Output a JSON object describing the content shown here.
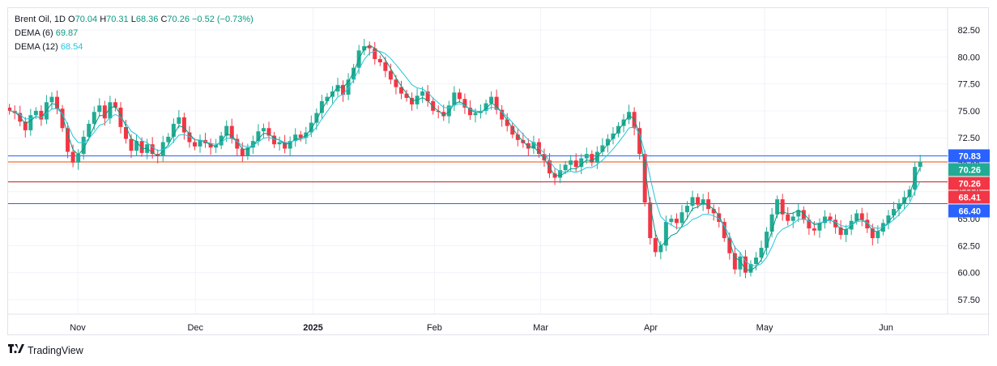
{
  "legend": {
    "symbol": "Brent Oil, 1D",
    "o_label": "O",
    "o_value": "70.04",
    "h_label": "H",
    "h_value": "70.31",
    "l_label": "L",
    "l_value": "68.36",
    "c_label": "C",
    "c_value": "70.26",
    "change": "−0.52 (−0.73%)",
    "dema6_label": "DEMA (6)",
    "dema6_value": "69.87",
    "dema12_label": "DEMA (12)",
    "dema12_value": "68.54"
  },
  "branding": {
    "logo_text": "TradingView"
  },
  "colors": {
    "up": "#22ab94",
    "down": "#f23645",
    "dema6": "#089981",
    "dema12": "#26c6da",
    "hline_blue": "#2962ff",
    "hline_orange": "#e65100",
    "hline_red": "#b71c1c"
  },
  "chart_data": {
    "type": "candlestick",
    "title": "Brent Oil, 1D",
    "y_ticks": [
      "82.50",
      "80.00",
      "77.50",
      "75.00",
      "72.50",
      "70.00",
      "67.50",
      "65.00",
      "62.50",
      "60.00",
      "57.50"
    ],
    "y_tick_values": [
      82.5,
      80.0,
      77.5,
      75.0,
      72.5,
      70.0,
      67.5,
      65.0,
      62.5,
      60.0,
      57.5
    ],
    "ylim": [
      56.0,
      84.0
    ],
    "x_labels": [
      "Nov",
      "Dec",
      "2025",
      "Feb",
      "Mar",
      "Apr",
      "May",
      "Jun"
    ],
    "x_label_dates": [
      "2024-11-01",
      "2024-12-02",
      "2025-01-02",
      "2025-02-03",
      "2025-03-03",
      "2025-04-01",
      "2025-05-01",
      "2025-06-02"
    ],
    "x_range": [
      "2024-10-14",
      "2025-06-30"
    ],
    "horizontal_lines": [
      {
        "value": 70.83,
        "label": "70.83",
        "color": "#2962ff"
      },
      {
        "value": 70.26,
        "label": "70.26",
        "color": "#e65100"
      },
      {
        "value": 68.41,
        "label": "68.41",
        "color": "#b71c1c"
      },
      {
        "value": 66.4,
        "label": "66.40",
        "color": "#2962ff"
      }
    ],
    "price_badges": [
      {
        "label": "70.83",
        "value": 70.83,
        "color": "#2962ff"
      },
      {
        "label": "70.26",
        "value": 70.26,
        "color": "#22ab94"
      },
      {
        "label": "70.26",
        "value": 68.9,
        "color": "#f23645"
      },
      {
        "label": "68.41",
        "value": 68.41,
        "color": "#f23645"
      },
      {
        "label": "66.40",
        "value": 66.4,
        "color": "#2962ff"
      }
    ],
    "series": [
      {
        "name": "Brent Oil",
        "type": "ohlc",
        "start": "2024-10-14",
        "step_days": 1.4,
        "closes": [
          75.0,
          74.8,
          74.0,
          73.2,
          74.6,
          75.0,
          74.2,
          75.8,
          76.3,
          75.2,
          73.4,
          71.2,
          70.2,
          71.0,
          72.6,
          73.8,
          74.9,
          75.5,
          74.3,
          75.8,
          75.3,
          73.5,
          72.4,
          71.3,
          72.2,
          71.1,
          71.9,
          71.0,
          70.8,
          72.1,
          72.6,
          73.8,
          74.4,
          73.0,
          72.1,
          71.7,
          72.3,
          72.0,
          71.6,
          71.8,
          72.7,
          73.6,
          72.4,
          71.5,
          70.8,
          71.6,
          72.2,
          73.1,
          73.4,
          72.7,
          71.9,
          72.1,
          71.5,
          72.2,
          72.8,
          72.5,
          73.0,
          73.9,
          74.8,
          75.9,
          76.3,
          76.8,
          77.4,
          76.5,
          77.9,
          79.0,
          80.6,
          81.0,
          80.8,
          79.8,
          79.5,
          78.7,
          77.9,
          77.2,
          76.6,
          76.2,
          75.6,
          76.4,
          76.8,
          75.9,
          75.0,
          74.9,
          74.5,
          75.5,
          76.7,
          76.1,
          75.3,
          74.6,
          74.8,
          75.0,
          75.7,
          76.3,
          75.1,
          74.2,
          73.6,
          72.8,
          72.3,
          72.0,
          71.5,
          72.1,
          71.0,
          70.4,
          69.2,
          68.8,
          69.5,
          70.0,
          70.4,
          69.8,
          70.6,
          71.0,
          70.2,
          71.2,
          71.8,
          72.4,
          72.9,
          73.6,
          74.2,
          74.9,
          73.4,
          71.0,
          66.5,
          63.2,
          61.9,
          62.5,
          64.7,
          65.0,
          64.6,
          65.6,
          66.2,
          67.0,
          66.3,
          66.8,
          65.9,
          65.5,
          64.7,
          63.2,
          61.8,
          60.3,
          61.5,
          60.0,
          60.8,
          61.4,
          62.3,
          63.8,
          65.4,
          66.8,
          65.4,
          64.8,
          65.2,
          65.8,
          64.9,
          64.1,
          63.9,
          64.6,
          65.2,
          64.9,
          64.2,
          63.5,
          64.0,
          64.8,
          65.5,
          64.9,
          64.1,
          63.2,
          63.8,
          64.6,
          65.3,
          65.9,
          66.4,
          67.0,
          67.7,
          69.8,
          70.26
        ]
      },
      {
        "name": "DEMA (6)",
        "value_label": "69.87"
      },
      {
        "name": "DEMA (12)",
        "value_label": "68.54"
      }
    ],
    "grid": true,
    "legend_position": "top-left"
  }
}
